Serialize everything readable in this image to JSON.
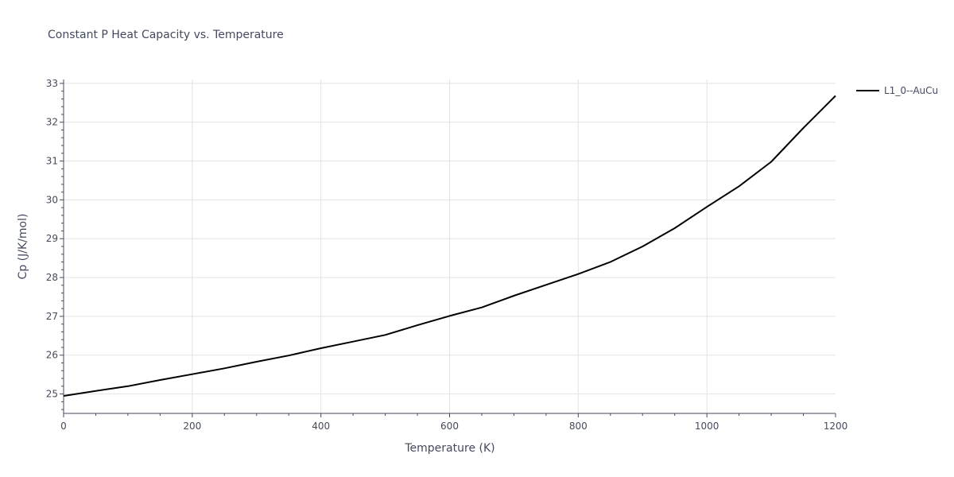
{
  "chart_data": {
    "type": "line",
    "title": "Constant P Heat Capacity vs. Temperature",
    "xlabel": "Temperature (K)",
    "ylabel": "Cp (J/K/mol)",
    "xlim": [
      0,
      1200
    ],
    "ylim": [
      24.5,
      33.1
    ],
    "xticks": [
      "0",
      "200",
      "400",
      "600",
      "800",
      "1000",
      "1200"
    ],
    "yticks": [
      "25",
      "26",
      "27",
      "28",
      "29",
      "30",
      "31",
      "32",
      "33"
    ],
    "grid": true,
    "legend_position": "top-right",
    "series": [
      {
        "name": "L1_0--AuCu",
        "color": "#000000",
        "x": [
          0,
          50,
          100,
          150,
          200,
          250,
          300,
          350,
          400,
          450,
          500,
          550,
          600,
          650,
          700,
          750,
          800,
          850,
          900,
          950,
          1000,
          1050,
          1100,
          1150,
          1200
        ],
        "y": [
          24.95,
          25.08,
          25.2,
          25.36,
          25.51,
          25.66,
          25.83,
          25.99,
          26.18,
          26.35,
          26.52,
          26.77,
          27.01,
          27.23,
          27.53,
          27.81,
          28.09,
          28.4,
          28.8,
          29.27,
          29.82,
          30.35,
          30.98,
          31.85,
          32.68
        ]
      }
    ]
  }
}
